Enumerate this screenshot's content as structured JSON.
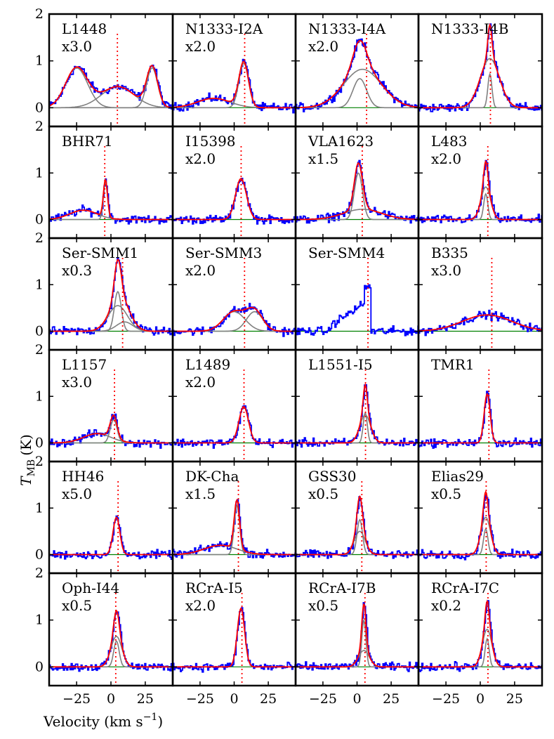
{
  "chart_data": {
    "type": "line",
    "ylabel": "T_MB (K)",
    "ylabel_main": "T",
    "ylabel_sub": "MB",
    "ylabel_unit": "(K)",
    "xlabel_main": "Velocity (km s",
    "xlabel_sup": "−1",
    "xlabel_close": ")",
    "xlim": [
      -45,
      45
    ],
    "ylim": [
      -0.4,
      2.0
    ],
    "xticks": [
      -25,
      0,
      25
    ],
    "xtick_labels": [
      "−25",
      "0",
      "25"
    ],
    "yticks": [
      0,
      1,
      2
    ],
    "ytick_labels": [
      "0",
      "1",
      "2"
    ],
    "grid": false,
    "colors": {
      "observed": "#0000ff",
      "fit": "#ff0000",
      "component": "#808080",
      "baseline": "#008000",
      "source_velocity": "#ff0000",
      "frame": "#000000"
    },
    "panels": [
      {
        "name": "L1448",
        "scale": "x3.0",
        "vsys": 4.7,
        "components": [
          {
            "amp": 0.85,
            "center": -25,
            "width": 8
          },
          {
            "amp": 0.45,
            "center": 5,
            "width": 12
          },
          {
            "amp": 0.85,
            "center": 30,
            "width": 4
          }
        ]
      },
      {
        "name": "N1333-I2A",
        "scale": "x2.0",
        "vsys": 7.7,
        "components": [
          {
            "amp": 0.95,
            "center": 7,
            "width": 3.5
          },
          {
            "amp": 0.2,
            "center": -15,
            "width": 12
          }
        ]
      },
      {
        "name": "N1333-I4A",
        "scale": "x2.0",
        "vsys": 7.0,
        "components": [
          {
            "amp": 0.62,
            "center": 2,
            "width": 5
          },
          {
            "amp": 0.82,
            "center": 4,
            "width": 14
          }
        ]
      },
      {
        "name": "N1333-I4B",
        "scale": "",
        "vsys": 7.4,
        "components": [
          {
            "amp": 0.72,
            "center": 7,
            "width": 1.5
          },
          {
            "amp": 1.05,
            "center": 7,
            "width": 7
          }
        ]
      },
      {
        "name": "BHR71",
        "scale": "",
        "vsys": -4.5,
        "components": [
          {
            "amp": 0.8,
            "center": -4,
            "width": 1.5
          },
          {
            "amp": 0.2,
            "center": -20,
            "width": 10
          }
        ]
      },
      {
        "name": "I15398",
        "scale": "x2.0",
        "vsys": 5.1,
        "components": [
          {
            "amp": 0.88,
            "center": 5,
            "width": 4
          }
        ]
      },
      {
        "name": "VLA1623",
        "scale": "x1.5",
        "vsys": 3.8,
        "components": [
          {
            "amp": 1.0,
            "center": 1,
            "width": 3
          },
          {
            "amp": 0.22,
            "center": 4,
            "width": 14
          }
        ]
      },
      {
        "name": "L483",
        "scale": "x2.0",
        "vsys": 5.5,
        "components": [
          {
            "amp": 0.55,
            "center": 4,
            "width": 1.5
          },
          {
            "amp": 0.7,
            "center": 4,
            "width": 3.5
          }
        ]
      },
      {
        "name": "Ser-SMM1",
        "scale": "x0.3",
        "vsys": 8.5,
        "components": [
          {
            "amp": 0.85,
            "center": 5,
            "width": 2.5
          },
          {
            "amp": 0.55,
            "center": 5,
            "width": 7
          },
          {
            "amp": 0.2,
            "center": 10,
            "width": 6
          }
        ]
      },
      {
        "name": "Ser-SMM3",
        "scale": "x2.0",
        "vsys": 7.6,
        "components": [
          {
            "amp": 0.42,
            "center": 0,
            "width": 8
          },
          {
            "amp": 0.42,
            "center": 15,
            "width": 6
          }
        ]
      },
      {
        "name": "Ser-SMM4",
        "scale": "",
        "vsys": 8.0,
        "components": []
      },
      {
        "name": "B335",
        "scale": "x3.0",
        "vsys": 8.4,
        "components": [
          {
            "amp": 0.35,
            "center": 5,
            "width": 18
          }
        ]
      },
      {
        "name": "L1157",
        "scale": "x3.0",
        "vsys": 2.6,
        "components": [
          {
            "amp": 0.5,
            "center": 2,
            "width": 2.5
          },
          {
            "amp": 0.2,
            "center": -10,
            "width": 10
          }
        ]
      },
      {
        "name": "L1489",
        "scale": "x2.0",
        "vsys": 7.2,
        "components": [
          {
            "amp": 0.78,
            "center": 7,
            "width": 3.5
          }
        ]
      },
      {
        "name": "L1551-I5",
        "scale": "",
        "vsys": 6.2,
        "components": [
          {
            "amp": 0.65,
            "center": 6,
            "width": 1.5
          },
          {
            "amp": 0.6,
            "center": 6,
            "width": 4
          }
        ]
      },
      {
        "name": "TMR1",
        "scale": "",
        "vsys": 6.3,
        "components": [
          {
            "amp": 1.05,
            "center": 5,
            "width": 2.2
          }
        ]
      },
      {
        "name": "HH46",
        "scale": "x5.0",
        "vsys": 5.2,
        "components": [
          {
            "amp": 0.8,
            "center": 4,
            "width": 2.5
          }
        ]
      },
      {
        "name": "DK-Cha",
        "scale": "x1.5",
        "vsys": 3.1,
        "components": [
          {
            "amp": 1.05,
            "center": 2,
            "width": 2
          },
          {
            "amp": 0.2,
            "center": -10,
            "width": 12
          }
        ]
      },
      {
        "name": "GSS30",
        "scale": "x0.5",
        "vsys": 3.5,
        "components": [
          {
            "amp": 0.75,
            "center": 2,
            "width": 2
          },
          {
            "amp": 0.5,
            "center": 2,
            "width": 4
          }
        ]
      },
      {
        "name": "Elias29",
        "scale": "x0.5",
        "vsys": 4.3,
        "components": [
          {
            "amp": 0.55,
            "center": 4,
            "width": 1.6
          },
          {
            "amp": 0.8,
            "center": 4,
            "width": 3.5
          }
        ]
      },
      {
        "name": "Oph-I44",
        "scale": "x0.5",
        "vsys": 3.5,
        "components": [
          {
            "amp": 0.55,
            "center": 4,
            "width": 2
          },
          {
            "amp": 0.65,
            "center": 4,
            "width": 4
          }
        ]
      },
      {
        "name": "RCrA-I5",
        "scale": "x2.0",
        "vsys": 5.7,
        "components": [
          {
            "amp": 1.25,
            "center": 5,
            "width": 2.7
          }
        ]
      },
      {
        "name": "RCrA-I7B",
        "scale": "x0.5",
        "vsys": 5.8,
        "components": [
          {
            "amp": 1.0,
            "center": 5,
            "width": 1.5
          },
          {
            "amp": 0.35,
            "center": 5,
            "width": 4
          }
        ]
      },
      {
        "name": "RCrA-I7C",
        "scale": "x0.2",
        "vsys": 5.6,
        "components": [
          {
            "amp": 0.6,
            "center": 5,
            "width": 1.5
          },
          {
            "amp": 0.8,
            "center": 5,
            "width": 3.5
          }
        ]
      }
    ]
  }
}
